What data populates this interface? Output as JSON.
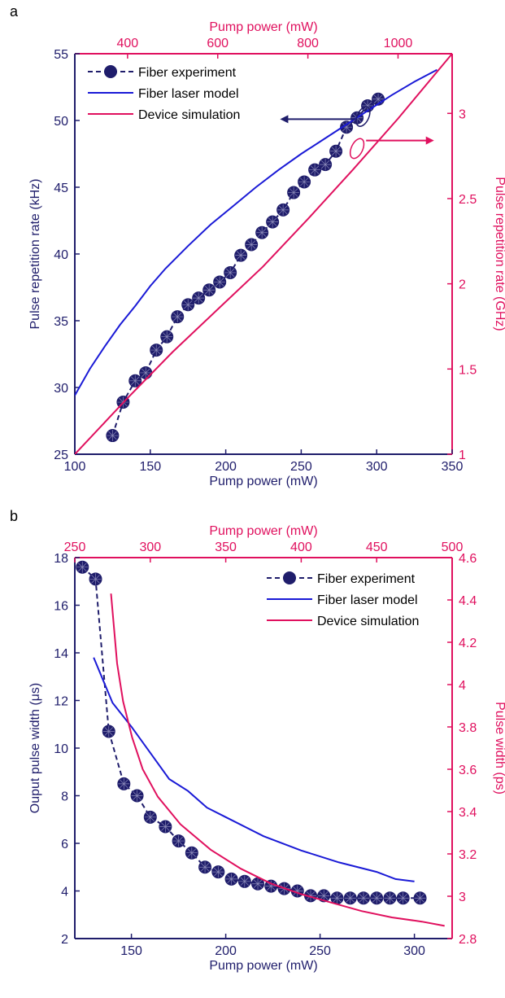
{
  "panels": [
    "a",
    "b"
  ],
  "colors": {
    "navy": "#1f1d6b",
    "blue": "#1a1ad6",
    "pink": "#e0105e"
  },
  "chart_data": [
    {
      "type": "line",
      "xlabel": "Pump power (mW)",
      "ylabel": "Pulse repetition rate (kHz)",
      "x2label": "Pump power (mW)",
      "y2label": "Pulse repetition rate (GHz)",
      "xlim": [
        100,
        350
      ],
      "ylim": [
        25,
        55
      ],
      "x2lim": [
        283,
        1120
      ],
      "y2lim": [
        1,
        3.35
      ],
      "xticks": [
        100,
        150,
        200,
        250,
        300,
        350
      ],
      "yticks": [
        25,
        30,
        35,
        40,
        45,
        50,
        55
      ],
      "x2ticks": [
        400,
        600,
        800,
        1000
      ],
      "y2ticks": [
        1,
        1.5,
        2,
        2.5,
        3
      ],
      "legend": "top-left",
      "series": [
        {
          "name": "Fiber experiment",
          "axis": "primary",
          "style": "markers-dashed",
          "x": [
            125,
            132,
            140,
            147,
            154,
            161,
            168,
            175,
            182,
            189,
            196,
            203,
            210,
            217,
            224,
            231,
            238,
            245,
            252,
            259,
            266,
            273,
            280,
            287,
            294,
            301
          ],
          "y": [
            26.4,
            28.9,
            30.5,
            31.1,
            32.8,
            33.8,
            35.3,
            36.2,
            36.7,
            37.3,
            37.9,
            38.6,
            39.9,
            40.7,
            41.6,
            42.4,
            43.3,
            44.6,
            45.4,
            46.3,
            46.7,
            47.7,
            49.5,
            50.2,
            51.1,
            51.6
          ]
        },
        {
          "name": "Fiber laser model",
          "axis": "primary",
          "style": "line",
          "x": [
            100,
            110,
            120,
            130,
            140,
            150,
            160,
            175,
            190,
            205,
            220,
            235,
            250,
            265,
            280,
            295,
            310,
            325,
            340
          ],
          "y": [
            29.4,
            31.4,
            33.1,
            34.7,
            36.1,
            37.6,
            38.9,
            40.6,
            42.2,
            43.6,
            45.0,
            46.3,
            47.5,
            48.6,
            49.7,
            50.8,
            51.9,
            52.9,
            53.8
          ]
        },
        {
          "name": "Device simulation",
          "axis": "secondary",
          "style": "line",
          "x": [
            283,
            400,
            500,
            600,
            700,
            800,
            900,
            1000,
            1120
          ],
          "y": [
            1.0,
            1.33,
            1.6,
            1.85,
            2.1,
            2.38,
            2.67,
            2.97,
            3.35
          ]
        }
      ],
      "annotations": [
        {
          "text": "arrow-left",
          "series": "Fiber experiment"
        },
        {
          "text": "arrow-right",
          "series": "Device simulation"
        }
      ]
    },
    {
      "type": "line",
      "xlabel": "Pump power (mW)",
      "ylabel": "Ouput pulse width (μs)",
      "x2label": "Pump power (mW)",
      "y2label": "Pulse width (ps)",
      "xlim": [
        120,
        320
      ],
      "ylim": [
        2,
        18
      ],
      "x2lim": [
        250,
        500
      ],
      "y2lim": [
        2.8,
        4.6
      ],
      "xticks": [
        150,
        200,
        250,
        300
      ],
      "yticks": [
        2,
        4,
        6,
        8,
        10,
        12,
        14,
        16,
        18
      ],
      "x2ticks": [
        250,
        300,
        350,
        400,
        450,
        500
      ],
      "y2ticks": [
        2.8,
        3.0,
        3.2,
        3.4,
        3.6,
        3.8,
        4.0,
        4.2,
        4.4,
        4.6
      ],
      "x2ticklabels": [
        "250",
        "300",
        "350",
        "400",
        "450",
        "500"
      ],
      "y2ticklabels": [
        "2.8",
        "3",
        "3.2",
        "3.4",
        "3.6",
        "3.8",
        "4",
        "4.2",
        "4.4",
        "4.6"
      ],
      "legend": "top-right",
      "series": [
        {
          "name": "Fiber experiment",
          "axis": "primary",
          "style": "markers-dashed",
          "x": [
            124,
            131,
            138,
            146,
            153,
            160,
            168,
            175,
            182,
            189,
            196,
            203,
            210,
            217,
            224,
            231,
            238,
            245,
            252,
            259,
            266,
            273,
            280,
            287,
            294,
            303
          ],
          "y": [
            17.6,
            17.1,
            10.7,
            8.5,
            8.0,
            7.1,
            6.7,
            6.1,
            5.6,
            5.0,
            4.8,
            4.5,
            4.4,
            4.3,
            4.2,
            4.1,
            4.0,
            3.8,
            3.8,
            3.7,
            3.7,
            3.7,
            3.7,
            3.7,
            3.7,
            3.7
          ]
        },
        {
          "name": "Fiber laser model",
          "axis": "primary",
          "style": "line",
          "x": [
            130,
            140,
            150,
            160,
            170,
            180,
            190,
            200,
            220,
            240,
            260,
            280,
            290,
            300
          ],
          "y": [
            13.8,
            11.9,
            10.9,
            9.8,
            8.7,
            8.2,
            7.5,
            7.1,
            6.3,
            5.7,
            5.2,
            4.8,
            4.5,
            4.4
          ]
        },
        {
          "name": "Device simulation",
          "axis": "secondary",
          "style": "line",
          "x": [
            274,
            278,
            282,
            288,
            295,
            305,
            320,
            340,
            360,
            380,
            400,
            420,
            440,
            460,
            480,
            495
          ],
          "y": [
            4.43,
            4.1,
            3.92,
            3.75,
            3.6,
            3.47,
            3.34,
            3.22,
            3.13,
            3.06,
            3.01,
            2.97,
            2.93,
            2.9,
            2.88,
            2.86
          ]
        }
      ]
    }
  ]
}
